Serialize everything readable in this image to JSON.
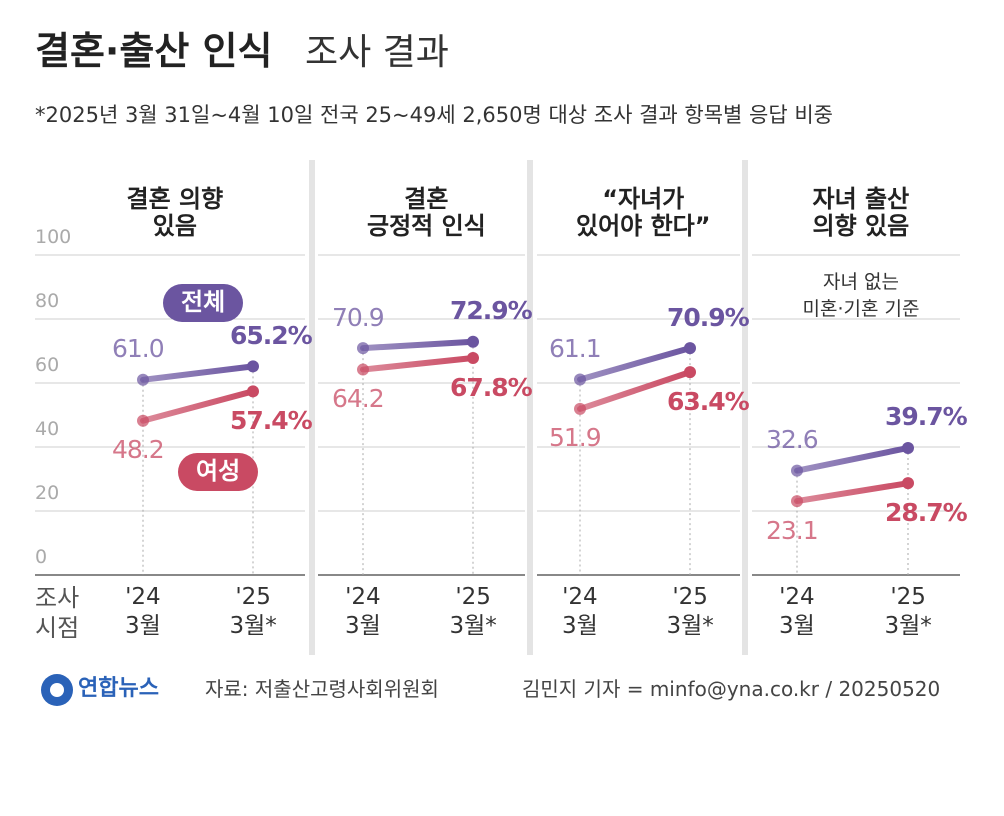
{
  "header": {
    "title": "결혼·출산 인식",
    "title_suffix": "조사 결과",
    "subtitle": "*2025년 3월 31일~4월 10일 전국 25~49세 2,650명 대상 조사 결과 항목별 응답 비중"
  },
  "x_axis_label": "조사\n시점",
  "chart_data": [
    {
      "type": "line",
      "title": "결혼 의향\n있음",
      "categories": [
        "'24\n3월",
        "'25\n3월*"
      ],
      "ylim": [
        0,
        100
      ],
      "yticks": [
        0,
        20,
        40,
        60,
        80,
        100
      ],
      "grid": true,
      "series": [
        {
          "name": "전체",
          "color": "#6b55a0",
          "values": [
            61.0,
            65.2
          ],
          "value_labels": [
            "61.0",
            "65.2%"
          ]
        },
        {
          "name": "여성",
          "color": "#c94a63",
          "values": [
            48.2,
            57.4
          ],
          "value_labels": [
            "48.2",
            "57.4%"
          ]
        }
      ]
    },
    {
      "type": "line",
      "title": "결혼\n긍정적 인식",
      "categories": [
        "'24\n3월",
        "'25\n3월*"
      ],
      "ylim": [
        0,
        100
      ],
      "yticks": [
        0,
        20,
        40,
        60,
        80,
        100
      ],
      "grid": true,
      "series": [
        {
          "color": "#6b55a0",
          "values": [
            70.9,
            72.9
          ],
          "value_labels": [
            "70.9",
            "72.9%"
          ]
        },
        {
          "color": "#c94a63",
          "values": [
            64.2,
            67.8
          ],
          "value_labels": [
            "64.2",
            "67.8%"
          ]
        }
      ]
    },
    {
      "type": "line",
      "title": "“자녀가\n있어야 한다”",
      "categories": [
        "'24\n3월",
        "'25\n3월*"
      ],
      "ylim": [
        0,
        100
      ],
      "yticks": [
        0,
        20,
        40,
        60,
        80,
        100
      ],
      "grid": true,
      "series": [
        {
          "color": "#6b55a0",
          "values": [
            61.1,
            70.9
          ],
          "value_labels": [
            "61.1",
            "70.9%"
          ]
        },
        {
          "color": "#c94a63",
          "values": [
            51.9,
            63.4
          ],
          "value_labels": [
            "51.9",
            "63.4%"
          ]
        }
      ]
    },
    {
      "type": "line",
      "title": "자녀 출산\n의향 있음",
      "annotation": "자녀 없는\n미혼·기혼 기준",
      "categories": [
        "'24\n3월",
        "'25\n3월*"
      ],
      "ylim": [
        0,
        100
      ],
      "yticks": [
        0,
        20,
        40,
        60,
        80,
        100
      ],
      "grid": true,
      "series": [
        {
          "color": "#6b55a0",
          "values": [
            32.6,
            39.7
          ],
          "value_labels": [
            "32.6",
            "39.7%"
          ]
        },
        {
          "color": "#c94a63",
          "values": [
            23.1,
            28.7
          ],
          "value_labels": [
            "23.1",
            "28.7%"
          ]
        }
      ]
    }
  ],
  "footer": {
    "logo": "연합뉴스",
    "source": "자료: 저출산고령사회위원회",
    "credit": "김민지 기자 = minfo@yna.co.kr / 20250520"
  }
}
